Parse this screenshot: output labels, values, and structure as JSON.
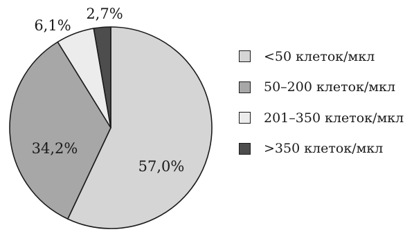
{
  "chart_data": {
    "type": "pie",
    "title": "",
    "start_angle": "12 o'clock, clockwise",
    "slices": [
      {
        "label": "<50 клеток/мкл",
        "value": 57.0,
        "value_label": "57,0%",
        "color": "#d5d5d5"
      },
      {
        "label": "50–200 клеток/мкл",
        "value": 34.2,
        "value_label": "34,2%",
        "color": "#a7a7a7"
      },
      {
        "label": "201–350 клеток/мкл",
        "value": 6.1,
        "value_label": "6,1%",
        "color": "#ececec"
      },
      {
        "label": ">350 клеток/мкл",
        "value": 2.7,
        "value_label": "2,7%",
        "color": "#4d4d4d"
      }
    ],
    "legend_position": "right"
  }
}
